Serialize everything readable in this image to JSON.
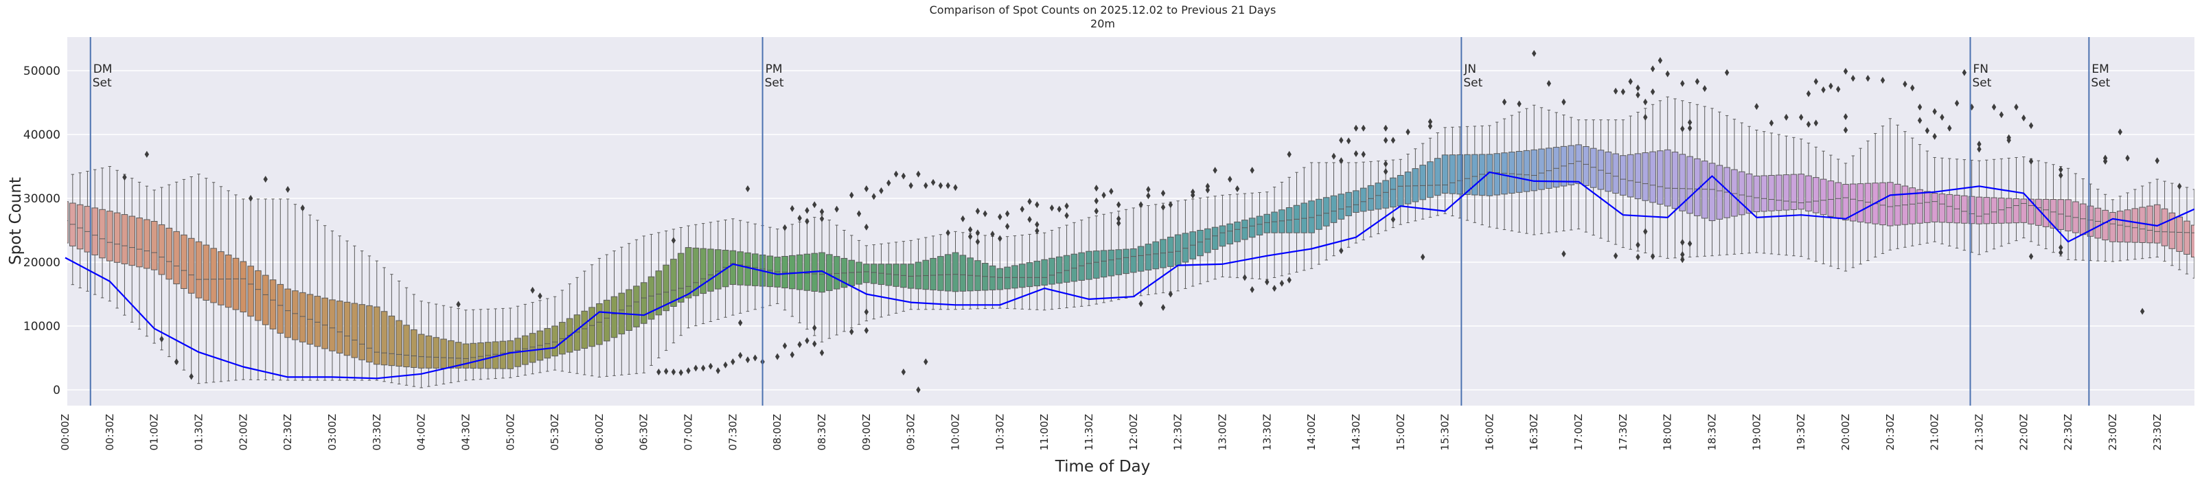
{
  "chart_data": {
    "type": "box",
    "title": "Comparison of Spot Counts on 2025.12.02 to Previous 21 Days",
    "subtitle": "20m",
    "xlabel": "Time of Day",
    "ylabel": "Spot Count",
    "ylim": [
      -2500,
      55300
    ],
    "yticks": [
      0,
      10000,
      20000,
      30000,
      40000,
      50000
    ],
    "grid": true,
    "bin_minutes": 5,
    "xtick_labels": [
      "00:00Z",
      "00:30Z",
      "01:00Z",
      "01:30Z",
      "02:00Z",
      "02:30Z",
      "03:00Z",
      "03:30Z",
      "04:00Z",
      "04:30Z",
      "05:00Z",
      "05:30Z",
      "06:00Z",
      "06:30Z",
      "07:00Z",
      "07:30Z",
      "08:00Z",
      "08:30Z",
      "09:00Z",
      "09:30Z",
      "10:00Z",
      "10:30Z",
      "11:00Z",
      "11:30Z",
      "12:00Z",
      "12:30Z",
      "13:00Z",
      "13:30Z",
      "14:00Z",
      "14:30Z",
      "15:00Z",
      "15:30Z",
      "16:00Z",
      "16:30Z",
      "17:00Z",
      "17:30Z",
      "18:00Z",
      "18:30Z",
      "19:00Z",
      "19:30Z",
      "20:00Z",
      "20:30Z",
      "21:00Z",
      "21:30Z",
      "22:00Z",
      "22:30Z",
      "23:00Z",
      "23:30Z"
    ],
    "sample_times": [
      "00:00",
      "00:30",
      "01:00",
      "01:30",
      "02:00",
      "02:30",
      "03:00",
      "03:30",
      "04:00",
      "04:30",
      "05:00",
      "05:30",
      "06:00",
      "06:30",
      "07:00",
      "07:30",
      "08:00",
      "08:30",
      "09:00",
      "09:30",
      "10:00",
      "10:30",
      "11:00",
      "11:30",
      "12:00",
      "12:30",
      "13:00",
      "13:30",
      "14:00",
      "14:30",
      "15:00",
      "15:30",
      "16:00",
      "16:30",
      "17:00",
      "17:30",
      "18:00",
      "18:30",
      "19:00",
      "19:30",
      "20:00",
      "20:30",
      "21:00",
      "21:30",
      "22:00",
      "22:30",
      "23:00",
      "23:30",
      "23:55"
    ],
    "previous_days": {
      "median": [
        26500,
        23100,
        21500,
        17300,
        17400,
        12400,
        9700,
        5900,
        5200,
        4900,
        5900,
        7500,
        10600,
        14400,
        16200,
        19800,
        18500,
        18100,
        18500,
        17800,
        18100,
        17600,
        17600,
        19800,
        20900,
        21700,
        24600,
        26200,
        27000,
        29000,
        31900,
        32100,
        34100,
        33600,
        35800,
        33000,
        31600,
        31400,
        30100,
        29300,
        30100,
        28700,
        29500,
        27200,
        29200,
        27200,
        26000,
        24800,
        24600
      ],
      "q1": [
        23000,
        20200,
        18800,
        14400,
        12200,
        8200,
        6100,
        4000,
        3400,
        3400,
        3300,
        5300,
        7100,
        10400,
        14400,
        16500,
        16100,
        15300,
        16800,
        15900,
        15400,
        15700,
        16400,
        17300,
        18400,
        19500,
        22500,
        24600,
        24600,
        27800,
        28800,
        30800,
        30400,
        31200,
        32300,
        30500,
        28800,
        26500,
        27900,
        28300,
        26600,
        25700,
        26300,
        26000,
        26200,
        24900,
        23200,
        23000,
        20800
      ],
      "q3": [
        29500,
        28000,
        26400,
        23200,
        20100,
        15800,
        14100,
        13000,
        8700,
        7200,
        7700,
        10000,
        13500,
        16800,
        22300,
        21800,
        20800,
        21500,
        19700,
        19700,
        21500,
        19000,
        20400,
        21700,
        22100,
        24300,
        25700,
        27500,
        29600,
        31200,
        33600,
        36800,
        36900,
        37600,
        38400,
        36700,
        37600,
        35500,
        33500,
        33800,
        32200,
        32500,
        30800,
        30200,
        29900,
        29800,
        27800,
        29000,
        25800
      ],
      "whisker_low": [
        17000,
        13900,
        7300,
        1000,
        1600,
        1500,
        1500,
        1500,
        330,
        1500,
        1900,
        3100,
        2000,
        2650,
        9700,
        11700,
        13500,
        7500,
        10800,
        12600,
        12600,
        12800,
        12500,
        13200,
        14600,
        15500,
        17700,
        17300,
        19000,
        23000,
        25900,
        27600,
        25500,
        24300,
        25200,
        22300,
        20600,
        21000,
        21500,
        20900,
        18600,
        21900,
        23200,
        21200,
        23800,
        20400,
        20100,
        20800,
        17500
      ],
      "whisker_high": [
        33500,
        35000,
        31300,
        33800,
        29900,
        29900,
        24900,
        20200,
        13900,
        12500,
        12800,
        14600,
        20600,
        24100,
        25700,
        26800,
        25200,
        27400,
        22600,
        23400,
        24800,
        23900,
        24600,
        27000,
        28500,
        29600,
        30500,
        31000,
        35600,
        35600,
        36100,
        41100,
        41400,
        44600,
        42300,
        42300,
        45900,
        44100,
        40700,
        39300,
        35500,
        42500,
        36400,
        35900,
        36500,
        34700,
        29800,
        33000,
        31400
      ]
    },
    "today": [
      20700,
      17000,
      9600,
      5900,
      3600,
      2000,
      2000,
      1800,
      2500,
      4100,
      5800,
      6600,
      12200,
      11700,
      15000,
      19700,
      18100,
      18600,
      15000,
      13700,
      13300,
      13300,
      15900,
      14200,
      14600,
      19500,
      19700,
      21000,
      22100,
      23900,
      28800,
      28000,
      34100,
      32700,
      32600,
      27400,
      27000,
      33500,
      27000,
      27400,
      26800,
      30500,
      31000,
      31900,
      30800,
      23200,
      26800,
      25700,
      28300
    ],
    "outliers": [
      [
        "00:40",
        33300
      ],
      [
        "00:55",
        36900
      ],
      [
        "01:05",
        7960
      ],
      [
        "01:15",
        4400
      ],
      [
        "01:25",
        2100
      ],
      [
        "02:05",
        30000
      ],
      [
        "02:15",
        33000
      ],
      [
        "02:30",
        31400
      ],
      [
        "02:40",
        28500
      ],
      [
        "04:25",
        13400
      ],
      [
        "05:15",
        15600
      ],
      [
        "05:20",
        14700
      ],
      [
        "06:50",
        23400
      ],
      [
        "07:40",
        31500
      ],
      [
        "07:35",
        10500
      ],
      [
        "06:40",
        2800
      ],
      [
        "06:45",
        2900
      ],
      [
        "06:50",
        2800
      ],
      [
        "06:55",
        2700
      ],
      [
        "07:00",
        3000
      ],
      [
        "07:05",
        3400
      ],
      [
        "07:10",
        3400
      ],
      [
        "07:15",
        3700
      ],
      [
        "07:20",
        3000
      ],
      [
        "07:25",
        3900
      ],
      [
        "07:30",
        4400
      ],
      [
        "07:35",
        5400
      ],
      [
        "07:40",
        4700
      ],
      [
        "07:45",
        5000
      ],
      [
        "07:50",
        4400
      ],
      [
        "08:00",
        5200
      ],
      [
        "08:05",
        6900
      ],
      [
        "08:10",
        5500
      ],
      [
        "08:15",
        7100
      ],
      [
        "08:20",
        7700
      ],
      [
        "08:25",
        9700
      ],
      [
        "08:25",
        7200
      ],
      [
        "08:30",
        5800
      ],
      [
        "08:05",
        25400
      ],
      [
        "08:10",
        28400
      ],
      [
        "08:15",
        26900
      ],
      [
        "08:20",
        28100
      ],
      [
        "08:20",
        26400
      ],
      [
        "08:25",
        29000
      ],
      [
        "08:30",
        27900
      ],
      [
        "08:30",
        26800
      ],
      [
        "08:40",
        28300
      ],
      [
        "08:50",
        30500
      ],
      [
        "08:50",
        9100
      ],
      [
        "08:55",
        27600
      ],
      [
        "09:00",
        31500
      ],
      [
        "09:00",
        25500
      ],
      [
        "09:00",
        12200
      ],
      [
        "09:00",
        9300
      ],
      [
        "09:05",
        30300
      ],
      [
        "09:10",
        31200
      ],
      [
        "09:15",
        32400
      ],
      [
        "09:20",
        33800
      ],
      [
        "09:25",
        33500
      ],
      [
        "09:25",
        2800
      ],
      [
        "09:30",
        32000
      ],
      [
        "09:35",
        33800
      ],
      [
        "09:35",
        0
      ],
      [
        "09:40",
        32000
      ],
      [
        "09:45",
        32500
      ],
      [
        "09:50",
        32000
      ],
      [
        "09:55",
        32000
      ],
      [
        "10:00",
        31700
      ],
      [
        "09:40",
        4400
      ],
      [
        "09:55",
        24600
      ],
      [
        "10:05",
        26800
      ],
      [
        "10:10",
        25100
      ],
      [
        "10:10",
        24000
      ],
      [
        "10:15",
        28000
      ],
      [
        "10:15",
        24600
      ],
      [
        "10:15",
        23200
      ],
      [
        "10:20",
        27600
      ],
      [
        "10:25",
        24400
      ],
      [
        "10:30",
        27100
      ],
      [
        "10:30",
        23700
      ],
      [
        "10:35",
        27600
      ],
      [
        "10:35",
        25600
      ],
      [
        "10:45",
        28300
      ],
      [
        "10:50",
        29500
      ],
      [
        "10:50",
        26700
      ],
      [
        "10:55",
        29000
      ],
      [
        "10:55",
        25900
      ],
      [
        "10:55",
        24900
      ],
      [
        "11:05",
        28500
      ],
      [
        "11:10",
        28300
      ],
      [
        "11:15",
        28800
      ],
      [
        "11:15",
        27300
      ],
      [
        "11:35",
        31600
      ],
      [
        "11:35",
        29600
      ],
      [
        "11:35",
        28000
      ],
      [
        "11:40",
        30500
      ],
      [
        "11:45",
        31100
      ],
      [
        "11:50",
        29000
      ],
      [
        "11:50",
        26800
      ],
      [
        "11:50",
        26100
      ],
      [
        "12:05",
        29000
      ],
      [
        "12:05",
        13500
      ],
      [
        "12:10",
        31400
      ],
      [
        "12:10",
        30400
      ],
      [
        "12:20",
        30800
      ],
      [
        "12:20",
        28600
      ],
      [
        "12:20",
        12900
      ],
      [
        "12:25",
        29000
      ],
      [
        "12:25",
        15000
      ],
      [
        "12:40",
        31000
      ],
      [
        "12:40",
        30500
      ],
      [
        "12:50",
        31900
      ],
      [
        "12:50",
        31300
      ],
      [
        "12:55",
        34400
      ],
      [
        "13:05",
        33000
      ],
      [
        "13:10",
        31500
      ],
      [
        "13:15",
        17600
      ],
      [
        "13:20",
        34400
      ],
      [
        "13:20",
        15700
      ],
      [
        "13:30",
        16900
      ],
      [
        "13:35",
        15900
      ],
      [
        "13:40",
        16700
      ],
      [
        "13:45",
        36900
      ],
      [
        "13:45",
        17200
      ],
      [
        "14:15",
        36600
      ],
      [
        "14:20",
        35900
      ],
      [
        "14:20",
        21800
      ],
      [
        "14:25",
        39000
      ],
      [
        "14:35",
        41000
      ],
      [
        "14:35",
        36900
      ],
      [
        "14:20",
        39100
      ],
      [
        "14:30",
        41000
      ],
      [
        "14:30",
        37000
      ],
      [
        "14:50",
        41000
      ],
      [
        "14:50",
        39100
      ],
      [
        "14:50",
        35400
      ],
      [
        "14:50",
        34200
      ],
      [
        "14:55",
        39100
      ],
      [
        "14:55",
        26700
      ],
      [
        "15:05",
        40400
      ],
      [
        "15:15",
        20800
      ],
      [
        "15:20",
        42000
      ],
      [
        "15:20",
        41300
      ],
      [
        "16:10",
        45100
      ],
      [
        "16:20",
        44800
      ],
      [
        "16:30",
        52700
      ],
      [
        "16:40",
        48000
      ],
      [
        "16:50",
        45100
      ],
      [
        "16:50",
        21300
      ],
      [
        "17:25",
        46800
      ],
      [
        "17:25",
        21000
      ],
      [
        "17:30",
        46700
      ],
      [
        "17:35",
        48300
      ],
      [
        "17:40",
        47300
      ],
      [
        "17:40",
        46200
      ],
      [
        "17:40",
        22700
      ],
      [
        "17:40",
        20800
      ],
      [
        "17:45",
        45100
      ],
      [
        "17:45",
        42700
      ],
      [
        "17:45",
        24800
      ],
      [
        "17:50",
        50300
      ],
      [
        "17:50",
        46700
      ],
      [
        "17:50",
        20900
      ],
      [
        "17:55",
        51600
      ],
      [
        "18:00",
        49500
      ],
      [
        "18:10",
        48000
      ],
      [
        "18:10",
        40900
      ],
      [
        "18:10",
        23100
      ],
      [
        "18:10",
        21200
      ],
      [
        "18:10",
        20400
      ],
      [
        "18:15",
        41900
      ],
      [
        "18:15",
        41000
      ],
      [
        "18:15",
        22900
      ],
      [
        "18:20",
        48300
      ],
      [
        "18:25",
        47200
      ],
      [
        "18:40",
        49700
      ],
      [
        "19:00",
        44400
      ],
      [
        "19:10",
        41800
      ],
      [
        "19:20",
        42700
      ],
      [
        "19:30",
        42700
      ],
      [
        "19:35",
        46400
      ],
      [
        "19:35",
        41600
      ],
      [
        "19:40",
        48300
      ],
      [
        "19:40",
        41800
      ],
      [
        "19:45",
        47000
      ],
      [
        "19:50",
        47600
      ],
      [
        "19:55",
        47100
      ],
      [
        "20:00",
        49900
      ],
      [
        "20:00",
        42800
      ],
      [
        "20:00",
        40700
      ],
      [
        "20:05",
        48800
      ],
      [
        "20:15",
        48800
      ],
      [
        "20:25",
        48500
      ],
      [
        "20:40",
        47900
      ],
      [
        "20:45",
        47300
      ],
      [
        "20:50",
        44300
      ],
      [
        "20:50",
        42200
      ],
      [
        "20:55",
        40600
      ],
      [
        "21:00",
        43600
      ],
      [
        "21:00",
        39700
      ],
      [
        "21:05",
        42700
      ],
      [
        "21:10",
        41000
      ],
      [
        "21:15",
        44900
      ],
      [
        "21:20",
        49700
      ],
      [
        "21:25",
        44300
      ],
      [
        "21:30",
        38500
      ],
      [
        "21:30",
        37700
      ],
      [
        "21:40",
        44300
      ],
      [
        "21:45",
        43100
      ],
      [
        "21:50",
        39500
      ],
      [
        "21:50",
        39100
      ],
      [
        "21:55",
        44300
      ],
      [
        "22:00",
        42600
      ],
      [
        "22:05",
        41400
      ],
      [
        "22:05",
        35800
      ],
      [
        "22:05",
        20900
      ],
      [
        "22:25",
        34500
      ],
      [
        "22:25",
        33600
      ],
      [
        "22:25",
        22300
      ],
      [
        "22:25",
        21500
      ],
      [
        "22:55",
        36300
      ],
      [
        "22:55",
        35800
      ],
      [
        "23:05",
        40400
      ],
      [
        "23:10",
        36300
      ],
      [
        "23:20",
        12300
      ],
      [
        "23:30",
        35900
      ],
      [
        "23:45",
        31900
      ]
    ],
    "events": [
      {
        "label1": "DM",
        "label2": "Set",
        "time": "00:17"
      },
      {
        "label1": "PM",
        "label2": "Set",
        "time": "07:50"
      },
      {
        "label1": "JN",
        "label2": "Set",
        "time": "15:41"
      },
      {
        "label1": "FN",
        "label2": "Set",
        "time": "21:24"
      },
      {
        "label1": "EM",
        "label2": "Set",
        "time": "22:44"
      }
    ],
    "colors": {
      "background": "#eaeaf2",
      "grid": "#ffffff",
      "today_line": "#0000ff",
      "event_line": "#4c72b0",
      "outlier": "#3d3d3d",
      "box_edge": "#5a5a5a",
      "palette": [
        [
          "00:00",
          "#dba3a3"
        ],
        [
          "02:00",
          "#cf9266"
        ],
        [
          "04:00",
          "#b0985e"
        ],
        [
          "06:00",
          "#8d9a55"
        ],
        [
          "08:00",
          "#62a266"
        ],
        [
          "10:00",
          "#5c9f80"
        ],
        [
          "12:00",
          "#5aa09a"
        ],
        [
          "14:00",
          "#5da3ae"
        ],
        [
          "16:00",
          "#74a4c8"
        ],
        [
          "17:00",
          "#9eaadd"
        ],
        [
          "18:00",
          "#b2a8e0"
        ],
        [
          "19:00",
          "#c4a6de"
        ],
        [
          "20:00",
          "#d49ed8"
        ],
        [
          "22:00",
          "#d99ec6"
        ],
        [
          "23:55",
          "#dba2a8"
        ]
      ]
    }
  }
}
